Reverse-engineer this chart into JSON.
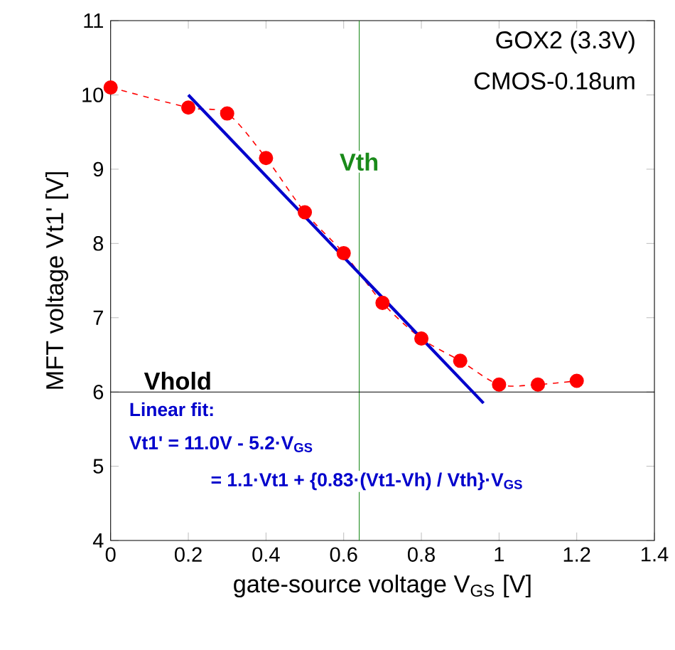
{
  "chart_data": {
    "type": "line",
    "xlabel": "gate-source voltage  V$_{GS}$  [V]",
    "ylabel": "MFT voltage Vt1' [V]",
    "xlim": [
      0,
      1.4
    ],
    "xticks": [
      0,
      0.2,
      0.4,
      0.6,
      0.8,
      1,
      1.2,
      1.4
    ],
    "ylim": [
      4,
      11
    ],
    "yticks": [
      4,
      5,
      6,
      7,
      8,
      9,
      10,
      11
    ],
    "series": [
      {
        "color": "#ff0000",
        "marker": "circle",
        "line_style": "dashed",
        "x": [
          0,
          0.2,
          0.3,
          0.4,
          0.5,
          0.6,
          0.7,
          0.8,
          0.9,
          1.0,
          1.1,
          1.2
        ],
        "values": [
          10.1,
          9.83,
          9.75,
          9.15,
          8.42,
          7.87,
          7.2,
          6.72,
          6.42,
          6.1,
          6.1,
          6.15
        ]
      },
      {
        "color": "#0000cc",
        "marker": "none",
        "line_style": "solid",
        "x": [
          0.2,
          0.96
        ],
        "values": [
          10.0,
          5.85
        ]
      }
    ],
    "ref_lines": [
      {
        "axis": "x",
        "value": 0.64,
        "label": "Vth",
        "color": "#1a8a1a"
      },
      {
        "axis": "y",
        "value": 6,
        "label": "Vhold",
        "color": "#000000"
      }
    ],
    "annotations": [
      "GOX2 (3.3V)",
      "CMOS-0.18um",
      "Linear fit:",
      "Vt1' = 11.0V -  5.2·V$_{GS}$",
      "= 1.1·Vt1 + {0.83·(Vt1-Vh) / Vth}·V$_{GS}$"
    ]
  }
}
